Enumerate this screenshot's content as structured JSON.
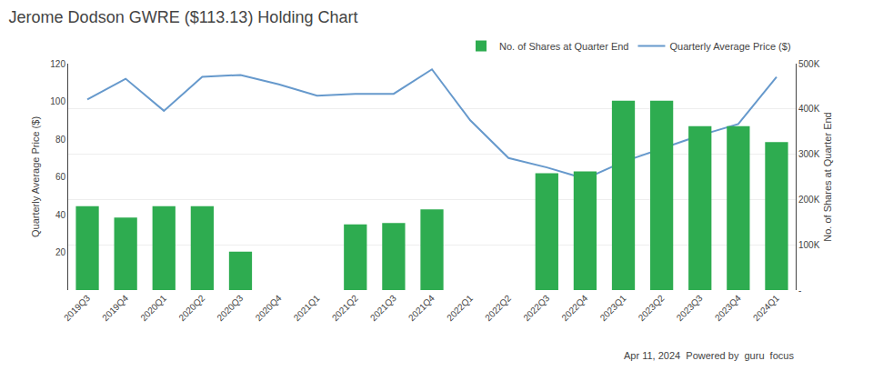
{
  "chart_data": {
    "type": "bar",
    "title": "Jerome Dodson GWRE ($113.13) Holding Chart",
    "categories": [
      "2019Q3",
      "2019Q4",
      "2020Q1",
      "2020Q2",
      "2020Q3",
      "2020Q4",
      "2021Q1",
      "2021Q2",
      "2021Q3",
      "2021Q4",
      "2022Q1",
      "2022Q2",
      "2022Q3",
      "2022Q4",
      "2023Q1",
      "2023Q2",
      "2023Q3",
      "2023Q4",
      "2024Q1"
    ],
    "series": [
      {
        "name": "No. of Shares at Quarter End",
        "type": "bar",
        "axis": "y2",
        "color": "#2eac50",
        "values": [
          185000,
          160000,
          185000,
          185000,
          85000,
          0,
          0,
          145000,
          148000,
          178000,
          0,
          0,
          258000,
          262000,
          418000,
          418000,
          362000,
          362000,
          327000
        ]
      },
      {
        "name": "Quarterly Average Price ($)",
        "type": "line",
        "color": "#6699cc",
        "values": [
          101,
          112,
          95,
          113,
          114,
          109,
          103,
          104,
          104,
          117,
          90,
          70,
          65,
          59,
          68,
          75,
          82,
          88,
          113
        ]
      }
    ],
    "ylabel": "Quarterly Average Price ($)",
    "y2label": "No. of Shares at Quarter End",
    "ylim": [
      0,
      120
    ],
    "yticks": [
      20,
      40,
      60,
      80,
      100,
      120
    ],
    "y2lim": [
      0,
      500000
    ],
    "y2ticks": [
      {
        "value": 0,
        "label": "-"
      },
      {
        "value": 100000,
        "label": "100K"
      },
      {
        "value": 200000,
        "label": "200K"
      },
      {
        "value": 300000,
        "label": "300K"
      },
      {
        "value": 400000,
        "label": "400K"
      },
      {
        "value": 500000,
        "label": "500K"
      }
    ],
    "grid": true,
    "legend": "upper right",
    "annotations": [
      "Apr 11, 2024",
      "Powered by",
      "guru",
      "focus"
    ]
  }
}
